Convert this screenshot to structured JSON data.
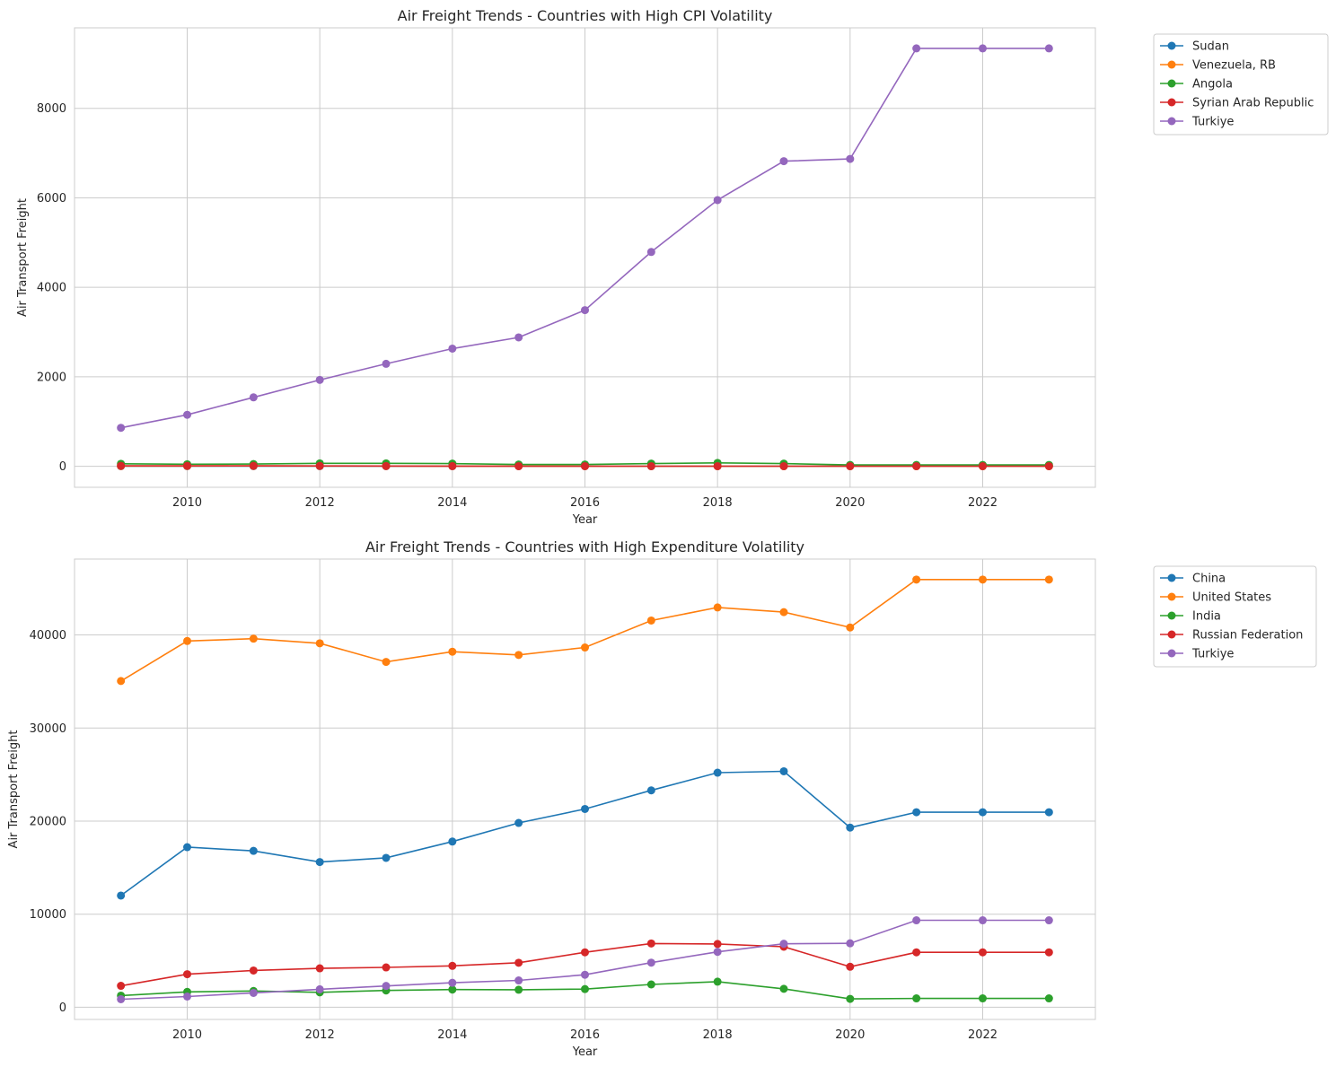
{
  "chart_data": [
    {
      "type": "line",
      "title": "Air Freight Trends - Countries with High CPI Volatility",
      "xlabel": "Year",
      "ylabel": "Air Transport Freight",
      "x": [
        2009,
        2010,
        2011,
        2012,
        2013,
        2014,
        2015,
        2016,
        2017,
        2018,
        2019,
        2020,
        2021,
        2022,
        2023
      ],
      "xlim": [
        2008.3,
        2023.7
      ],
      "ylim": [
        -470,
        9800
      ],
      "xticks": [
        "2010",
        "2012",
        "2014",
        "2016",
        "2018",
        "2020",
        "2022"
      ],
      "yticks": [
        "0",
        "2000",
        "4000",
        "6000",
        "8000"
      ],
      "grid": true,
      "legend": "outside-top-right",
      "series": [
        {
          "name": "Sudan",
          "color": "#1f77b4",
          "values": [
            3,
            3,
            3,
            3,
            3,
            3,
            3,
            2,
            2,
            2,
            2,
            2,
            2,
            2,
            2
          ]
        },
        {
          "name": "Venezuela, RB",
          "color": "#ff7f0e",
          "values": [
            5,
            6,
            7,
            6,
            5,
            4,
            3,
            2,
            2,
            1,
            1,
            1,
            1,
            1,
            1
          ]
        },
        {
          "name": "Angola",
          "color": "#2ca02c",
          "values": [
            55,
            45,
            50,
            65,
            65,
            60,
            40,
            40,
            60,
            75,
            60,
            30,
            30,
            30,
            30
          ]
        },
        {
          "name": "Syrian Arab Republic",
          "color": "#d62728",
          "values": [
            10,
            10,
            10,
            8,
            5,
            3,
            2,
            2,
            2,
            2,
            2,
            2,
            2,
            2,
            2
          ]
        },
        {
          "name": "Turkiye",
          "color": "#9467bd",
          "values": [
            860,
            1150,
            1540,
            1930,
            2290,
            2630,
            2880,
            3490,
            4790,
            5950,
            6820,
            6870,
            9340,
            9340,
            9340
          ]
        }
      ]
    },
    {
      "type": "line",
      "title": "Air Freight Trends - Countries with High Expenditure Volatility",
      "xlabel": "Year",
      "ylabel": "Air Transport Freight",
      "x": [
        2009,
        2010,
        2011,
        2012,
        2013,
        2014,
        2015,
        2016,
        2017,
        2018,
        2019,
        2020,
        2021,
        2022,
        2023
      ],
      "xlim": [
        2008.3,
        2023.7
      ],
      "ylim": [
        -1310,
        48150
      ],
      "xticks": [
        "2010",
        "2012",
        "2014",
        "2016",
        "2018",
        "2020",
        "2022"
      ],
      "yticks": [
        "0",
        "10000",
        "20000",
        "30000",
        "40000"
      ],
      "grid": true,
      "legend": "outside-top-right",
      "series": [
        {
          "name": "China",
          "color": "#1f77b4",
          "values": [
            12000,
            17200,
            16800,
            15600,
            16050,
            17800,
            19800,
            21300,
            23300,
            25200,
            25350,
            19300,
            20950,
            20950,
            20950
          ]
        },
        {
          "name": "United States",
          "color": "#ff7f0e",
          "values": [
            35050,
            39350,
            39600,
            39100,
            37100,
            38200,
            37850,
            38650,
            41550,
            42950,
            42450,
            40800,
            45950,
            45950,
            45950
          ]
        },
        {
          "name": "India",
          "color": "#2ca02c",
          "values": [
            1250,
            1650,
            1750,
            1600,
            1800,
            1900,
            1880,
            1950,
            2450,
            2750,
            1980,
            900,
            950,
            950,
            950
          ]
        },
        {
          "name": "Russian Federation",
          "color": "#d62728",
          "values": [
            2300,
            3550,
            3950,
            4180,
            4280,
            4450,
            4780,
            5900,
            6850,
            6800,
            6500,
            4350,
            5900,
            5900,
            5900
          ]
        },
        {
          "name": "Turkiye",
          "color": "#9467bd",
          "values": [
            860,
            1150,
            1540,
            1930,
            2290,
            2630,
            2880,
            3490,
            4790,
            5950,
            6820,
            6870,
            9340,
            9340,
            9340
          ]
        }
      ]
    }
  ]
}
